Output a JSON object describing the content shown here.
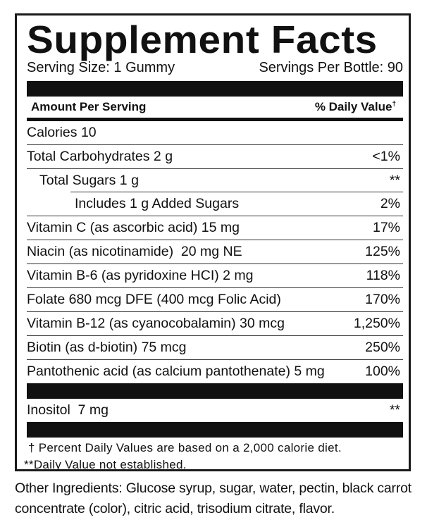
{
  "title": "Supplement Facts",
  "serving_size": "Serving Size: 1 Gummy",
  "servings_per_container": "Servings Per Bottle: 90",
  "header": {
    "amount": "Amount Per Serving",
    "daily_value": "% Daily Value",
    "dagger": "†"
  },
  "nutrients": [
    {
      "name": "Calories 10",
      "dv": ""
    },
    {
      "name": "Total Carbohydrates 2 g",
      "dv": "<1%"
    },
    {
      "name": "Total Sugars 1 g",
      "dv": "**"
    },
    {
      "name": "Includes 1 g Added Sugars",
      "dv": "2%"
    },
    {
      "name": "Vitamin C (as ascorbic acid) 15 mg",
      "dv": "17%"
    },
    {
      "name": "Niacin (as nicotinamide)  20 mg NE",
      "dv": "125%"
    },
    {
      "name": "Vitamin B-6 (as pyridoxine HCI) 2 mg",
      "dv": "118%"
    },
    {
      "name": "Folate 680 mcg DFE (400 mcg Folic Acid)",
      "dv": "170%"
    },
    {
      "name": "Vitamin B-12 (as cyanocobalamin) 30 mcg",
      "dv": "1,250%"
    },
    {
      "name": "Biotin (as d-biotin) 75 mcg",
      "dv": "250%"
    },
    {
      "name": "Pantothenic acid (as calcium pantothenate) 5 mg",
      "dv": "100%"
    }
  ],
  "other_nutrients": [
    {
      "name": "Inositol  7 mg",
      "dv": "**"
    }
  ],
  "footnotes": [
    "† Percent Daily Values are based on a 2,000 calorie diet.",
    "**Daily Value not established."
  ],
  "other_ingredients": "Other Ingredients: Glucose syrup, sugar, water, pectin,  black carrot concentrate (color), citric acid, trisodium citrate, flavor."
}
